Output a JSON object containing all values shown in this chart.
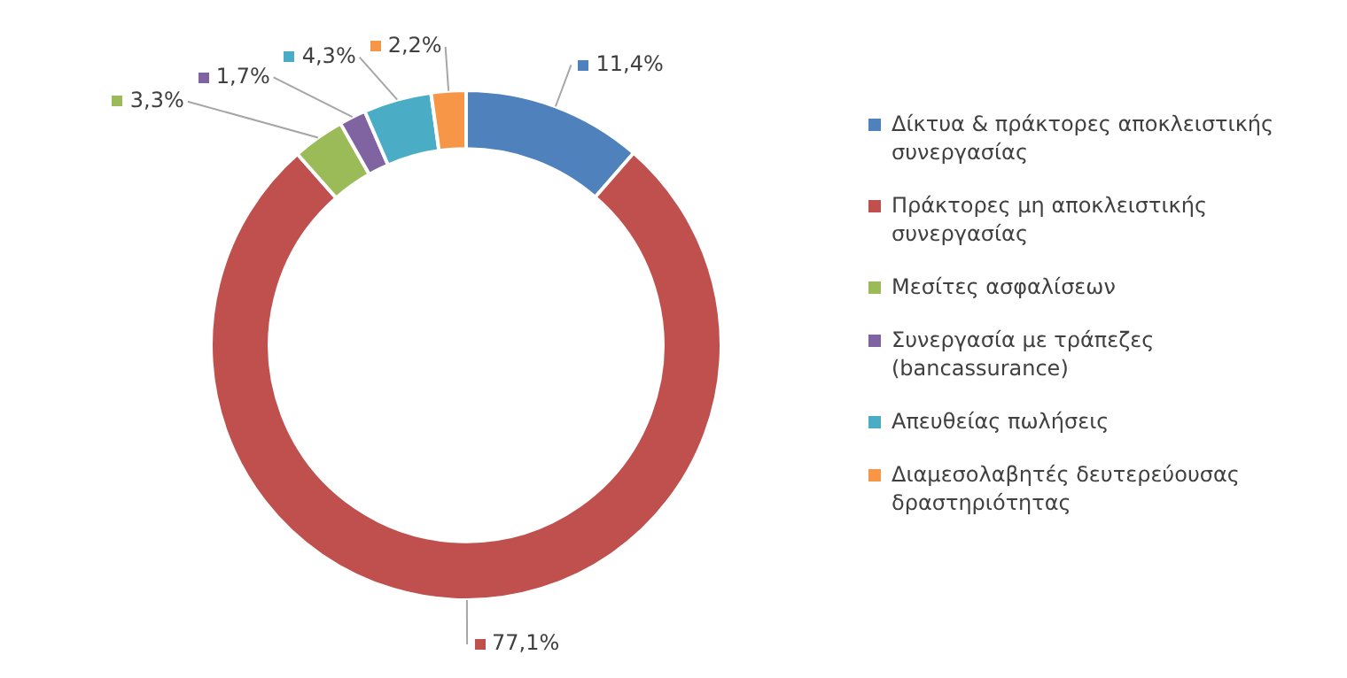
{
  "chart_data": {
    "type": "donut",
    "categories": [
      "Δίκτυα & πράκτορες αποκλειστικής συνεργασίας",
      "Πράκτορες μη αποκλειστικής συνεργασίας",
      "Μεσίτες ασφαλίσεων",
      "Συνεργασία με τράπεζες (bancassurance)",
      "Απευθείας πωλήσεις",
      "Διαμεσολαβητές δευτερεύουσας δραστηριότητας"
    ],
    "values": [
      11.4,
      77.1,
      3.3,
      1.7,
      4.3,
      2.2
    ],
    "value_labels": [
      "11,4%",
      "77,1%",
      "3,3%",
      "1,7%",
      "4,3%",
      "2,2%"
    ],
    "colors": [
      "#4f81bd",
      "#c0504d",
      "#9bbb59",
      "#8064a2",
      "#4bacc6",
      "#f79646"
    ],
    "legend": "right"
  }
}
